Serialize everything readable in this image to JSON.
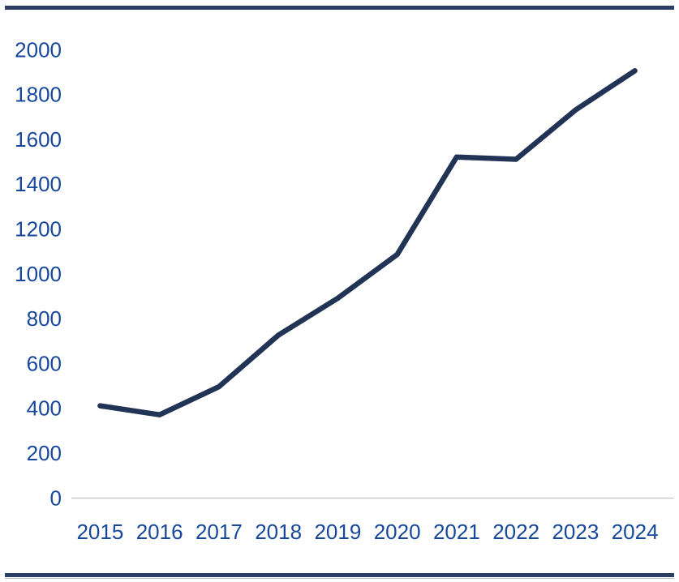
{
  "page": {
    "background": "#ffffff"
  },
  "rules": {
    "color": "#2a3f63",
    "bottom_thin_color": "#aeb4c0"
  },
  "chart_data": {
    "type": "line",
    "title": "",
    "xlabel": "",
    "ylabel": "",
    "categories": [
      "2015",
      "2016",
      "2017",
      "2018",
      "2019",
      "2020",
      "2021",
      "2022",
      "2023",
      "2024"
    ],
    "values": [
      410,
      370,
      495,
      725,
      890,
      1085,
      1520,
      1510,
      1730,
      1905
    ],
    "ylim": [
      0,
      2000
    ],
    "ytick_step": 200,
    "yticks": [
      "0",
      "200",
      "400",
      "600",
      "800",
      "1000",
      "1200",
      "1400",
      "1600",
      "1800",
      "2000"
    ],
    "grid": false,
    "legend": "none",
    "line_color": "#223455",
    "label_color": "#17479b",
    "axis_color": "#c9c9c9"
  }
}
